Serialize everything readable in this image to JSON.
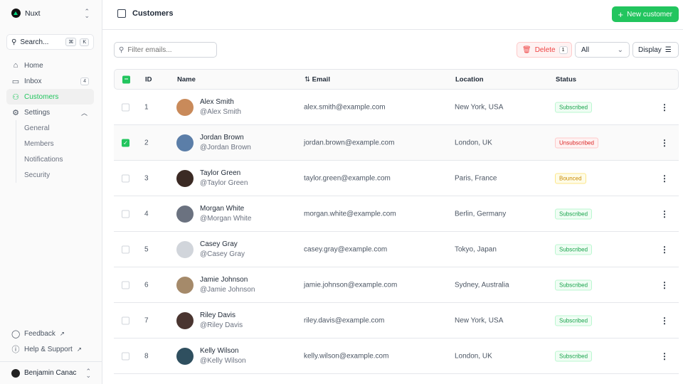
{
  "sidebar": {
    "team": "Nuxt",
    "search": "Search...",
    "kbd": [
      "⌘",
      "K"
    ],
    "items": [
      {
        "label": "Home",
        "icon": "home-icon"
      },
      {
        "label": "Inbox",
        "icon": "inbox-icon",
        "badge": "4"
      },
      {
        "label": "Customers",
        "icon": "users-icon"
      },
      {
        "label": "Settings",
        "icon": "gear-icon"
      }
    ],
    "settings_sub": [
      "General",
      "Members",
      "Notifications",
      "Security"
    ],
    "footer": [
      {
        "label": "Feedback",
        "icon": "chat-icon"
      },
      {
        "label": "Help & Support",
        "icon": "info-icon"
      }
    ],
    "user": "Benjamin Canac"
  },
  "header": {
    "title": "Customers",
    "new_button": "New customer"
  },
  "toolbar": {
    "filter_placeholder": "Filter emails...",
    "delete_label": "Delete",
    "delete_count": "1",
    "status_filter": "All",
    "display_label": "Display"
  },
  "table": {
    "columns": [
      "ID",
      "Name",
      "Email",
      "Location",
      "Status"
    ],
    "rows": [
      {
        "id": "1",
        "name": "Alex Smith",
        "handle": "@Alex Smith",
        "email": "alex.smith@example.com",
        "location": "New York, USA",
        "status": "Subscribed",
        "selected": false,
        "avatar": "#c98a5a"
      },
      {
        "id": "2",
        "name": "Jordan Brown",
        "handle": "@Jordan Brown",
        "email": "jordan.brown@example.com",
        "location": "London, UK",
        "status": "Unsubscribed",
        "selected": true,
        "avatar": "#5b7ea8"
      },
      {
        "id": "3",
        "name": "Taylor Green",
        "handle": "@Taylor Green",
        "email": "taylor.green@example.com",
        "location": "Paris, France",
        "status": "Bounced",
        "selected": false,
        "avatar": "#3b2a24"
      },
      {
        "id": "4",
        "name": "Morgan White",
        "handle": "@Morgan White",
        "email": "morgan.white@example.com",
        "location": "Berlin, Germany",
        "status": "Subscribed",
        "selected": false,
        "avatar": "#6b7280"
      },
      {
        "id": "5",
        "name": "Casey Gray",
        "handle": "@Casey Gray",
        "email": "casey.gray@example.com",
        "location": "Tokyo, Japan",
        "status": "Subscribed",
        "selected": false,
        "avatar": "#d1d5db"
      },
      {
        "id": "6",
        "name": "Jamie Johnson",
        "handle": "@Jamie Johnson",
        "email": "jamie.johnson@example.com",
        "location": "Sydney, Australia",
        "status": "Subscribed",
        "selected": false,
        "avatar": "#a58a6a"
      },
      {
        "id": "7",
        "name": "Riley Davis",
        "handle": "@Riley Davis",
        "email": "riley.davis@example.com",
        "location": "New York, USA",
        "status": "Subscribed",
        "selected": false,
        "avatar": "#4a3530"
      },
      {
        "id": "8",
        "name": "Kelly Wilson",
        "handle": "@Kelly Wilson",
        "email": "kelly.wilson@example.com",
        "location": "London, UK",
        "status": "Subscribed",
        "selected": false,
        "avatar": "#2f4f5f"
      }
    ]
  },
  "colors": {
    "accent": "#22c55e",
    "danger": "#ef4444"
  }
}
